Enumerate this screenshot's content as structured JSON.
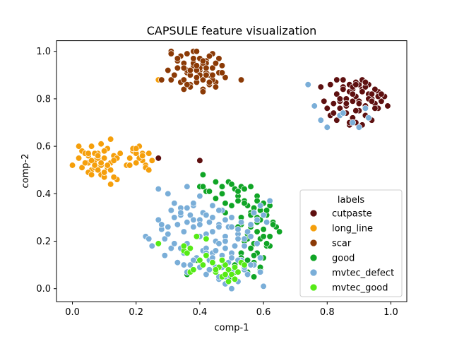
{
  "chart_data": {
    "type": "scatter",
    "title": "CAPSULE feature visualization",
    "xlabel": "comp-1",
    "ylabel": "comp-2",
    "xlim": [
      -0.05,
      1.05
    ],
    "ylim": [
      -0.055,
      1.045
    ],
    "xticks": [
      0.0,
      0.2,
      0.4,
      0.6,
      0.8,
      1.0
    ],
    "yticks": [
      0.0,
      0.2,
      0.4,
      0.6,
      0.8,
      1.0
    ],
    "tick_labels_x": [
      "0.0",
      "0.2",
      "0.4",
      "0.6",
      "0.8",
      "1.0"
    ],
    "tick_labels_y": [
      "0.0",
      "0.2",
      "0.4",
      "0.6",
      "0.8",
      "1.0"
    ],
    "grid": false,
    "legend": {
      "title": "labels",
      "placement": "lower-right",
      "entries": [
        {
          "name": "cutpaste",
          "color": "#5e1010"
        },
        {
          "name": "long_line",
          "color": "#f59f0b"
        },
        {
          "name": "scar",
          "color": "#8b3a06"
        },
        {
          "name": "good",
          "color": "#10a526"
        },
        {
          "name": "mvtec_defect",
          "color": "#7aaed8"
        },
        {
          "name": "mvtec_good",
          "color": "#56ea16"
        }
      ]
    },
    "series": [
      {
        "name": "cutpaste",
        "color": "#5e1010",
        "x": [
          0.82,
          0.83,
          0.84,
          0.85,
          0.86,
          0.87,
          0.88,
          0.89,
          0.9,
          0.91,
          0.92,
          0.93,
          0.94,
          0.95,
          0.96,
          0.97,
          0.98,
          0.85,
          0.87,
          0.89,
          0.91,
          0.93,
          0.95,
          0.86,
          0.88,
          0.9,
          0.92,
          0.94,
          0.96,
          0.84,
          0.86,
          0.88,
          0.9,
          0.92,
          0.94,
          0.87,
          0.89,
          0.91,
          0.93,
          0.8,
          0.81,
          0.83,
          0.79,
          0.81,
          0.83,
          0.85,
          0.88,
          0.92,
          0.96,
          0.99,
          0.87,
          0.89,
          0.86,
          0.88,
          0.9,
          0.93,
          0.95,
          0.97,
          0.78,
          0.82,
          0.84,
          0.86,
          0.89,
          0.91,
          0.94,
          0.4,
          0.27
        ],
        "y": [
          0.78,
          0.82,
          0.76,
          0.85,
          0.8,
          0.83,
          0.79,
          0.81,
          0.86,
          0.84,
          0.77,
          0.82,
          0.8,
          0.78,
          0.83,
          0.79,
          0.81,
          0.88,
          0.86,
          0.87,
          0.88,
          0.86,
          0.84,
          0.74,
          0.72,
          0.75,
          0.73,
          0.71,
          0.76,
          0.79,
          0.77,
          0.84,
          0.79,
          0.85,
          0.82,
          0.69,
          0.7,
          0.69,
          0.72,
          0.76,
          0.73,
          0.71,
          0.79,
          0.86,
          0.88,
          0.84,
          0.85,
          0.87,
          0.81,
          0.77,
          0.7,
          0.75,
          0.8,
          0.82,
          0.78,
          0.8,
          0.76,
          0.82,
          0.85,
          0.74,
          0.8,
          0.78,
          0.86,
          0.83,
          0.79,
          0.54,
          0.55
        ]
      },
      {
        "name": "long_line",
        "color": "#f59f0b",
        "x": [
          0.0,
          0.02,
          0.03,
          0.04,
          0.05,
          0.06,
          0.07,
          0.08,
          0.09,
          0.1,
          0.11,
          0.12,
          0.13,
          0.02,
          0.04,
          0.06,
          0.08,
          0.1,
          0.12,
          0.14,
          0.03,
          0.05,
          0.07,
          0.09,
          0.11,
          0.13,
          0.05,
          0.07,
          0.09,
          0.11,
          0.06,
          0.08,
          0.1,
          0.12,
          0.14,
          0.04,
          0.06,
          0.08,
          0.1,
          0.12,
          0.15,
          0.17,
          0.18,
          0.19,
          0.2,
          0.21,
          0.22,
          0.23,
          0.24,
          0.19,
          0.21,
          0.23,
          0.25,
          0.2,
          0.22,
          0.24,
          0.18,
          0.2,
          0.22,
          0.05,
          0.07,
          0.09,
          0.11,
          0.13,
          0.06,
          0.27
        ],
        "y": [
          0.52,
          0.55,
          0.58,
          0.53,
          0.56,
          0.5,
          0.54,
          0.57,
          0.52,
          0.55,
          0.59,
          0.53,
          0.56,
          0.6,
          0.57,
          0.6,
          0.55,
          0.58,
          0.63,
          0.55,
          0.51,
          0.49,
          0.51,
          0.48,
          0.51,
          0.54,
          0.53,
          0.57,
          0.61,
          0.52,
          0.48,
          0.5,
          0.47,
          0.44,
          0.46,
          0.53,
          0.54,
          0.56,
          0.49,
          0.5,
          0.57,
          0.52,
          0.55,
          0.58,
          0.57,
          0.6,
          0.54,
          0.52,
          0.57,
          0.59,
          0.55,
          0.51,
          0.54,
          0.53,
          0.57,
          0.5,
          0.52,
          0.59,
          0.56,
          0.57,
          0.52,
          0.53,
          0.52,
          0.47,
          0.6,
          0.88
        ]
      },
      {
        "name": "scar",
        "color": "#8b3a06",
        "x": [
          0.3,
          0.31,
          0.32,
          0.33,
          0.34,
          0.35,
          0.36,
          0.37,
          0.38,
          0.39,
          0.4,
          0.41,
          0.42,
          0.43,
          0.44,
          0.45,
          0.46,
          0.47,
          0.48,
          0.34,
          0.36,
          0.38,
          0.4,
          0.42,
          0.44,
          0.46,
          0.35,
          0.37,
          0.39,
          0.41,
          0.43,
          0.45,
          0.36,
          0.38,
          0.4,
          0.42,
          0.44,
          0.33,
          0.35,
          0.37,
          0.39,
          0.41,
          0.43,
          0.31,
          0.33,
          0.35,
          0.37,
          0.39,
          0.41,
          0.43,
          0.45,
          0.47,
          0.38,
          0.4,
          0.42,
          0.28,
          0.31,
          0.39,
          0.41,
          0.44,
          0.53,
          0.36,
          0.39,
          0.42
        ],
        "y": [
          0.92,
          0.88,
          0.9,
          0.93,
          0.87,
          0.95,
          0.91,
          0.86,
          0.94,
          0.89,
          0.92,
          0.88,
          0.96,
          0.9,
          0.93,
          0.87,
          0.91,
          0.94,
          0.89,
          0.98,
          0.99,
          1.0,
          0.97,
          0.95,
          0.99,
          0.97,
          0.84,
          0.85,
          0.87,
          0.84,
          0.86,
          0.85,
          0.92,
          0.95,
          0.93,
          0.91,
          0.88,
          0.96,
          0.93,
          0.9,
          0.92,
          0.95,
          0.87,
          1.0,
          0.97,
          0.88,
          0.92,
          0.94,
          0.96,
          0.98,
          0.95,
          0.91,
          0.97,
          0.9,
          0.93,
          0.88,
          0.99,
          1.0,
          0.83,
          0.9,
          0.88,
          0.86,
          0.89,
          0.9
        ]
      },
      {
        "name": "good",
        "color": "#10a526",
        "x": [
          0.41,
          0.42,
          0.4,
          0.43,
          0.45,
          0.47,
          0.48,
          0.49,
          0.5,
          0.51,
          0.52,
          0.53,
          0.54,
          0.55,
          0.56,
          0.57,
          0.58,
          0.59,
          0.6,
          0.61,
          0.62,
          0.63,
          0.64,
          0.65,
          0.52,
          0.54,
          0.56,
          0.58,
          0.6,
          0.62,
          0.53,
          0.55,
          0.57,
          0.59,
          0.61,
          0.5,
          0.52,
          0.54,
          0.56,
          0.58,
          0.6,
          0.62,
          0.57,
          0.59,
          0.61,
          0.53,
          0.55,
          0.57,
          0.59,
          0.51,
          0.53,
          0.55,
          0.57,
          0.49,
          0.51,
          0.56,
          0.58,
          0.6,
          0.48,
          0.5,
          0.52,
          0.54,
          0.56,
          0.58,
          0.55,
          0.59,
          0.61,
          0.63,
          0.36,
          0.39,
          0.41,
          0.45,
          0.47,
          0.53,
          0.58
        ],
        "y": [
          0.48,
          0.41,
          0.43,
          0.41,
          0.38,
          0.4,
          0.36,
          0.45,
          0.44,
          0.42,
          0.39,
          0.43,
          0.37,
          0.35,
          0.32,
          0.34,
          0.3,
          0.33,
          0.36,
          0.31,
          0.35,
          0.28,
          0.26,
          0.24,
          0.41,
          0.36,
          0.31,
          0.28,
          0.25,
          0.22,
          0.27,
          0.23,
          0.19,
          0.21,
          0.18,
          0.3,
          0.26,
          0.2,
          0.17,
          0.15,
          0.13,
          0.18,
          0.11,
          0.08,
          0.19,
          0.15,
          0.12,
          0.14,
          0.09,
          0.1,
          0.13,
          0.07,
          0.05,
          0.04,
          0.07,
          0.26,
          0.24,
          0.22,
          0.32,
          0.35,
          0.37,
          0.42,
          0.43,
          0.39,
          0.21,
          0.29,
          0.33,
          0.27,
          0.06,
          0.12,
          0.43,
          0.45,
          0.43,
          0.3,
          0.37
        ]
      },
      {
        "name": "mvtec_defect",
        "color": "#7aaed8",
        "x": [
          0.23,
          0.25,
          0.27,
          0.28,
          0.29,
          0.3,
          0.31,
          0.32,
          0.33,
          0.34,
          0.35,
          0.36,
          0.37,
          0.38,
          0.39,
          0.4,
          0.41,
          0.42,
          0.43,
          0.44,
          0.45,
          0.46,
          0.47,
          0.48,
          0.49,
          0.5,
          0.51,
          0.52,
          0.53,
          0.54,
          0.55,
          0.56,
          0.57,
          0.58,
          0.59,
          0.6,
          0.61,
          0.62,
          0.27,
          0.29,
          0.31,
          0.33,
          0.35,
          0.37,
          0.39,
          0.41,
          0.43,
          0.45,
          0.47,
          0.49,
          0.51,
          0.53,
          0.55,
          0.57,
          0.59,
          0.28,
          0.3,
          0.32,
          0.34,
          0.36,
          0.38,
          0.4,
          0.42,
          0.44,
          0.46,
          0.48,
          0.5,
          0.52,
          0.54,
          0.56,
          0.58,
          0.3,
          0.32,
          0.34,
          0.36,
          0.38,
          0.4,
          0.42,
          0.44,
          0.46,
          0.48,
          0.5,
          0.52,
          0.54,
          0.56,
          0.34,
          0.36,
          0.38,
          0.4,
          0.42,
          0.44,
          0.46,
          0.48,
          0.5,
          0.52,
          0.54,
          0.36,
          0.38,
          0.4,
          0.42,
          0.44,
          0.46,
          0.48,
          0.5,
          0.52,
          0.42,
          0.44,
          0.46,
          0.48,
          0.5,
          0.43,
          0.47,
          0.49,
          0.51,
          0.35,
          0.37,
          0.45,
          0.6,
          0.59,
          0.24,
          0.74,
          0.76,
          0.78,
          0.8,
          0.84,
          0.88,
          0.9,
          0.93,
          0.92,
          0.85
        ],
        "y": [
          0.22,
          0.18,
          0.29,
          0.25,
          0.21,
          0.26,
          0.33,
          0.3,
          0.27,
          0.34,
          0.24,
          0.19,
          0.31,
          0.26,
          0.22,
          0.29,
          0.32,
          0.23,
          0.28,
          0.24,
          0.2,
          0.27,
          0.33,
          0.22,
          0.26,
          0.3,
          0.18,
          0.23,
          0.28,
          0.21,
          0.24,
          0.27,
          0.32,
          0.29,
          0.35,
          0.31,
          0.28,
          0.37,
          0.42,
          0.14,
          0.17,
          0.11,
          0.15,
          0.1,
          0.13,
          0.16,
          0.12,
          0.09,
          0.14,
          0.11,
          0.08,
          0.12,
          0.06,
          0.1,
          0.13,
          0.27,
          0.23,
          0.19,
          0.31,
          0.28,
          0.35,
          0.22,
          0.17,
          0.3,
          0.26,
          0.2,
          0.15,
          0.25,
          0.18,
          0.22,
          0.19,
          0.4,
          0.36,
          0.32,
          0.34,
          0.29,
          0.27,
          0.21,
          0.15,
          0.19,
          0.17,
          0.13,
          0.21,
          0.08,
          0.1,
          0.17,
          0.07,
          0.12,
          0.09,
          0.06,
          0.11,
          0.04,
          0.05,
          0.07,
          0.03,
          0.09,
          0.43,
          0.36,
          0.39,
          0.31,
          0.35,
          0.33,
          0.29,
          0.26,
          0.12,
          0.15,
          0.13,
          0.05,
          0.02,
          0.0,
          0.08,
          0.09,
          0.06,
          0.04,
          0.1,
          0.1,
          0.16,
          0.01,
          0.07,
          0.21,
          0.86,
          0.77,
          0.71,
          0.68,
          0.73,
          0.7,
          0.68,
          0.72,
          0.76,
          0.74
        ]
      },
      {
        "name": "mvtec_good",
        "color": "#56ea16",
        "x": [
          0.27,
          0.35,
          0.36,
          0.37,
          0.38,
          0.4,
          0.41,
          0.42,
          0.44,
          0.45,
          0.46,
          0.47,
          0.48,
          0.49,
          0.5,
          0.51,
          0.52,
          0.53,
          0.54,
          0.49,
          0.51,
          0.47,
          0.42,
          0.37,
          0.39,
          0.35,
          0.45,
          0.48
        ],
        "y": [
          0.19,
          0.16,
          0.15,
          0.07,
          0.08,
          0.12,
          0.1,
          0.14,
          0.11,
          0.07,
          0.09,
          0.05,
          0.1,
          0.08,
          0.06,
          0.09,
          0.07,
          0.11,
          0.1,
          0.03,
          0.04,
          0.12,
          0.21,
          0.17,
          0.22,
          0.18,
          0.08,
          0.06
        ]
      }
    ]
  }
}
